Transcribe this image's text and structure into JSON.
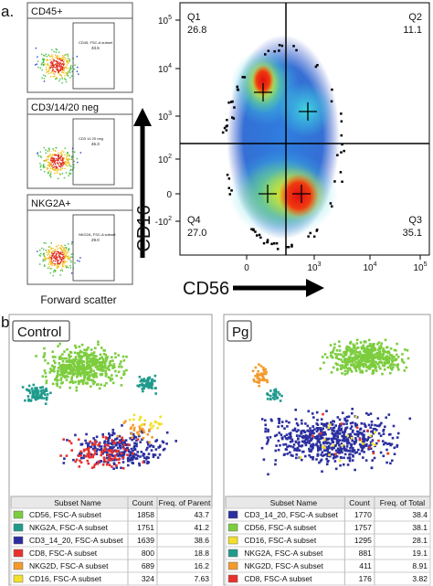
{
  "panel_a": {
    "label": "a.",
    "gates": [
      {
        "title": "CD45+",
        "gate_name": "CD45, FSC-A subset",
        "gate_value": "33.5"
      },
      {
        "title": "CD3/14/20 neg",
        "gate_name": "CD3 14 20 neg",
        "gate_value": "46.3"
      },
      {
        "title": "NKG2A+",
        "gate_name": "NKG2A, FSC-A subset",
        "gate_value": "29.0"
      }
    ],
    "gate_x_axis": "Forward scatter",
    "main_plot": {
      "y_axis": "CD16",
      "x_axis": "CD56",
      "yticks": [
        {
          "base": "10",
          "exp": "5"
        },
        {
          "base": "10",
          "exp": "4"
        },
        {
          "base": "10",
          "exp": "3"
        },
        {
          "base": "10",
          "exp": "2"
        },
        {
          "base": "0"
        },
        {
          "base": "-10",
          "exp": "2"
        }
      ],
      "xticks": [
        {
          "base": "0"
        },
        {
          "base": "10",
          "exp": "3"
        },
        {
          "base": "10",
          "exp": "4"
        },
        {
          "base": "10",
          "exp": "5"
        }
      ],
      "quadrants": [
        {
          "name": "Q1",
          "value": "26.8"
        },
        {
          "name": "Q2",
          "value": "11.1"
        },
        {
          "name": "Q4",
          "value": "27.0"
        },
        {
          "name": "Q3",
          "value": "35.1"
        }
      ]
    }
  },
  "panel_b": {
    "label": "b.",
    "plots": [
      {
        "title": "Control",
        "header": [
          "Subset Name",
          "Count",
          "Freq. of Parent"
        ],
        "rows": [
          {
            "name": "CD56, FSC-A subset",
            "count": "1858",
            "freq": "43.7",
            "color": "#7ccd3e"
          },
          {
            "name": "NKG2A, FSC-A subset",
            "count": "1751",
            "freq": "41.2",
            "color": "#1f9b8c"
          },
          {
            "name": "CD3_14_20, FSC-A subset",
            "count": "1639",
            "freq": "38.6",
            "color": "#2b2f9e"
          },
          {
            "name": "CD8, FSC-A subset",
            "count": "800",
            "freq": "18.8",
            "color": "#e8312d"
          },
          {
            "name": "NKG2D, FSC-A subset",
            "count": "689",
            "freq": "16.2",
            "color": "#f39a2b"
          },
          {
            "name": "CD16, FSC-A subset",
            "count": "324",
            "freq": "7.63",
            "color": "#f2e02c"
          }
        ]
      },
      {
        "title": "Pg",
        "header": [
          "Subset Name",
          "Count",
          "Freq. of Total"
        ],
        "rows": [
          {
            "name": "CD3_14_20, FSC-A subset",
            "count": "1770",
            "freq": "38.4",
            "color": "#2b2f9e"
          },
          {
            "name": "CD56, FSC-A subset",
            "count": "1757",
            "freq": "38.1",
            "color": "#7ccd3e"
          },
          {
            "name": "CD16, FSC-A subset",
            "count": "1295",
            "freq": "28.1",
            "color": "#f2e02c"
          },
          {
            "name": "NKG2A, FSC-A subset",
            "count": "881",
            "freq": "19.1",
            "color": "#1f9b8c"
          },
          {
            "name": "NKG2D, FSC-A subset",
            "count": "411",
            "freq": "8.91",
            "color": "#f39a2b"
          },
          {
            "name": "CD8, FSC-A subset",
            "count": "176",
            "freq": "3.82",
            "color": "#e8312d"
          }
        ]
      }
    ]
  }
}
